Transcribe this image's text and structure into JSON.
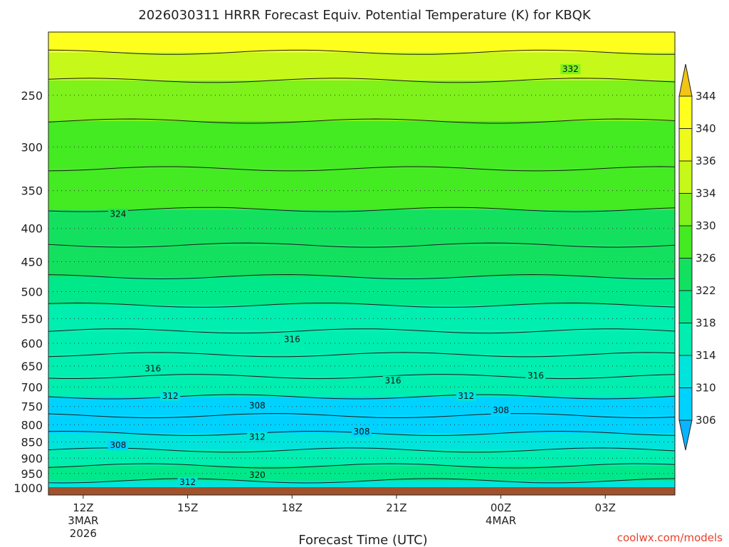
{
  "chart_data": {
    "type": "heatmap",
    "title": "2026030311 HRRR Forecast Equiv. Potential Temperature (K) for KBQK",
    "xlabel": "Forecast Time (UTC)",
    "ylabel": "",
    "credit": "coolwx.com/models",
    "y_scale": "log-pressure",
    "y_ticks": [
      250,
      300,
      350,
      400,
      450,
      500,
      550,
      600,
      650,
      700,
      750,
      800,
      850,
      900,
      950,
      1000
    ],
    "y_range": [
      1025,
      200
    ],
    "x_ticks": [
      {
        "label": "12Z",
        "sub": [
          "3MAR",
          "2026"
        ]
      },
      {
        "label": "15Z",
        "sub": []
      },
      {
        "label": "18Z",
        "sub": []
      },
      {
        "label": "21Z",
        "sub": []
      },
      {
        "label": "00Z",
        "sub": [
          "4MAR"
        ]
      },
      {
        "label": "03Z",
        "sub": []
      }
    ],
    "x_range_hours": [
      11,
      29
    ],
    "x_tick_hours": [
      12,
      15,
      18,
      21,
      24,
      27
    ],
    "colorbar": {
      "levels": [
        306,
        310,
        314,
        318,
        322,
        326,
        330,
        334,
        336,
        340,
        344
      ],
      "colors": [
        "#0ab4ff",
        "#00d2ff",
        "#00e4dc",
        "#00eeb0",
        "#00e88a",
        "#14e060",
        "#44ea22",
        "#7ef21a",
        "#c6f81a",
        "#eefa1a",
        "#ffff1e",
        "#f2c414"
      ]
    },
    "layers": [
      {
        "p": 1000,
        "theta": 313
      },
      {
        "p": 950,
        "theta": 318
      },
      {
        "p": 900,
        "theta": 314
      },
      {
        "p": 850,
        "theta": 310
      },
      {
        "p": 800,
        "theta": 307
      },
      {
        "p": 750,
        "theta": 309
      },
      {
        "p": 700,
        "theta": 314
      },
      {
        "p": 650,
        "theta": 316
      },
      {
        "p": 600,
        "theta": 316
      },
      {
        "p": 550,
        "theta": 317
      },
      {
        "p": 500,
        "theta": 319
      },
      {
        "p": 450,
        "theta": 322
      },
      {
        "p": 400,
        "theta": 324
      },
      {
        "p": 350,
        "theta": 326
      },
      {
        "p": 300,
        "theta": 328
      },
      {
        "p": 250,
        "theta": 331
      },
      {
        "p": 225,
        "theta": 335
      },
      {
        "p": 205,
        "theta": 341
      }
    ],
    "contour_labels": [
      {
        "text": "332",
        "hour": 26.0,
        "p": 228
      },
      {
        "text": "324",
        "hour": 13.0,
        "p": 380
      },
      {
        "text": "316",
        "hour": 18.0,
        "p": 592
      },
      {
        "text": "316",
        "hour": 14.0,
        "p": 656
      },
      {
        "text": "316",
        "hour": 20.9,
        "p": 685
      },
      {
        "text": "316",
        "hour": 25.0,
        "p": 673
      },
      {
        "text": "312",
        "hour": 14.5,
        "p": 723
      },
      {
        "text": "312",
        "hour": 23.0,
        "p": 723
      },
      {
        "text": "308",
        "hour": 17.0,
        "p": 748
      },
      {
        "text": "308",
        "hour": 24.0,
        "p": 760
      },
      {
        "text": "308",
        "hour": 20.0,
        "p": 820
      },
      {
        "text": "308",
        "hour": 13.0,
        "p": 860
      },
      {
        "text": "312",
        "hour": 17.0,
        "p": 835
      },
      {
        "text": "320",
        "hour": 17.0,
        "p": 955
      },
      {
        "text": "312",
        "hour": 15.0,
        "p": 980
      }
    ]
  }
}
